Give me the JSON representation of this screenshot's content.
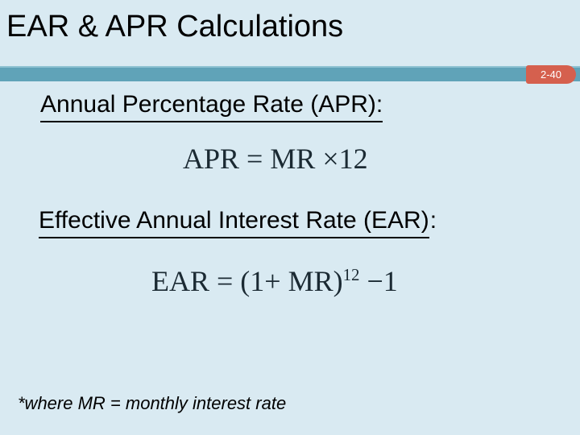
{
  "slide": {
    "title": "EAR & APR Calculations",
    "page_badge": "2-40",
    "sections": [
      {
        "heading": "Annual Percentage Rate (APR):",
        "formula": {
          "text": "APR = MR ×12"
        }
      },
      {
        "heading": "Effective Annual Interest Rate (EAR)",
        "heading_colon": ":",
        "formula": {
          "base": "EAR = (1+ MR)",
          "sup": "12",
          "tail": " −1"
        }
      }
    ],
    "footnote": "*where MR = monthly interest rate"
  },
  "colors": {
    "background": "#d9eaf2",
    "divider_bar": "#60a3b8",
    "divider_bar_highlight": "#8ec2d2",
    "page_badge_background": "#d5604e",
    "page_badge_text": "#ffffff",
    "formula_text": "#1b2a33",
    "body_text": "#000000"
  }
}
